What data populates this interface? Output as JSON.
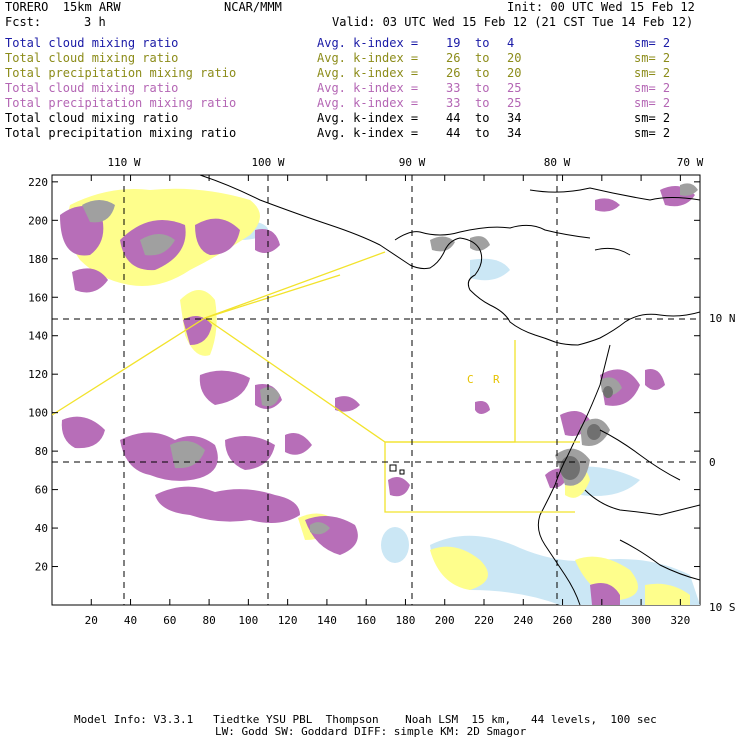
{
  "header": {
    "model": "TORERO  15km ARW",
    "org": "NCAR/MMM",
    "init": "Init: 00 UTC Wed 15 Feb 12",
    "fcst_label": "Fcst:",
    "fcst_value": "3 h",
    "valid": "Valid: 03 UTC Wed 15 Feb 12 (21 CST Tue 14 Feb 12)"
  },
  "legend": [
    {
      "name": "Total cloud mixing ratio",
      "kindex": "Avg. k-index =",
      "from": "19",
      "to_word": "to",
      "to": "4",
      "sm": "sm= 2",
      "color": "#1a1aa6"
    },
    {
      "name": "Total cloud mixing ratio",
      "kindex": "Avg. k-index =",
      "from": "26",
      "to_word": "to",
      "to": "20",
      "sm": "sm= 2",
      "color": "#8c8c1a"
    },
    {
      "name": "Total precipitation mixing ratio",
      "kindex": "Avg. k-index =",
      "from": "26",
      "to_word": "to",
      "to": "20",
      "sm": "sm= 2",
      "color": "#8c8c1a"
    },
    {
      "name": "Total cloud mixing ratio",
      "kindex": "Avg. k-index =",
      "from": "33",
      "to_word": "to",
      "to": "25",
      "sm": "sm= 2",
      "color": "#b466b4"
    },
    {
      "name": "Total precipitation mixing ratio",
      "kindex": "Avg. k-index =",
      "from": "33",
      "to_word": "to",
      "to": "25",
      "sm": "sm= 2",
      "color": "#b466b4"
    },
    {
      "name": "Total cloud mixing ratio",
      "kindex": "Avg. k-index =",
      "from": "44",
      "to_word": "to",
      "to": "34",
      "sm": "sm= 2",
      "color": "#000000"
    },
    {
      "name": "Total precipitation mixing ratio",
      "kindex": "Avg. k-index =",
      "from": "44",
      "to_word": "to",
      "to": "34",
      "sm": "sm= 2",
      "color": "#000000"
    }
  ],
  "map": {
    "top_labels": [
      "110 W",
      "100 W",
      "90 W",
      "80 W",
      "70 W"
    ],
    "right_labels": [
      "10 N",
      "0",
      "10 S"
    ],
    "left_ticks": [
      "20",
      "40",
      "60",
      "80",
      "100",
      "120",
      "140",
      "160",
      "180",
      "200",
      "220"
    ],
    "bottom_ticks": [
      "20",
      "40",
      "60",
      "80",
      "100",
      "120",
      "140",
      "160",
      "180",
      "200",
      "220",
      "240",
      "260",
      "280",
      "300",
      "320"
    ],
    "region_labels": [
      "C",
      "R"
    ],
    "colors": {
      "light_blue": "#cbe7f5",
      "yellow": "#fefe8c",
      "purple": "#b76eb8",
      "gray": "#a0a0a0",
      "dark_gray": "#707070",
      "boundary": "#f2e32c",
      "coast": "#000000"
    }
  },
  "footer": {
    "line1": "Model Info: V3.3.1   Tiedtke YSU PBL  Thompson    Noah LSM  15 km,   44 levels,  100 sec",
    "line2": "LW: Godd SW: Goddard DIFF: simple KM: 2D Smagor"
  }
}
